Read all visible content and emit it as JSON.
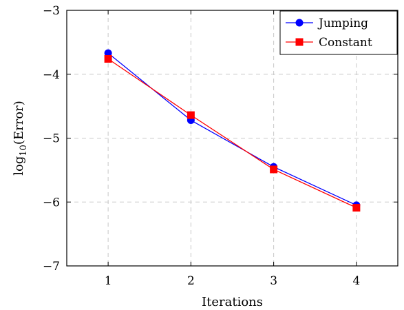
{
  "chart_data": {
    "type": "line",
    "title": "",
    "xlabel": "Iterations",
    "ylabel_base": "log",
    "ylabel_sub": "10",
    "ylabel_rest": "(Error)",
    "xlim": [
      0.5,
      4.5
    ],
    "ylim": [
      -7,
      -3
    ],
    "x_ticks": [
      1,
      2,
      3,
      4
    ],
    "x_tick_labels": [
      "1",
      "2",
      "3",
      "4"
    ],
    "y_ticks": [
      -7,
      -6,
      -5,
      -4,
      -3
    ],
    "y_tick_labels": [
      "−7",
      "−6",
      "−5",
      "−4",
      "−3"
    ],
    "grid": true,
    "legend_position": "top-right",
    "series": [
      {
        "name": "Jumping",
        "color": "#0000ff",
        "marker": "circle",
        "x": [
          1,
          2,
          3,
          4
        ],
        "y": [
          -3.67,
          -4.72,
          -5.45,
          -6.05
        ]
      },
      {
        "name": "Constant",
        "color": "#ff0000",
        "marker": "square",
        "x": [
          1,
          2,
          3,
          4
        ],
        "y": [
          -3.76,
          -4.64,
          -5.49,
          -6.09
        ]
      }
    ]
  }
}
